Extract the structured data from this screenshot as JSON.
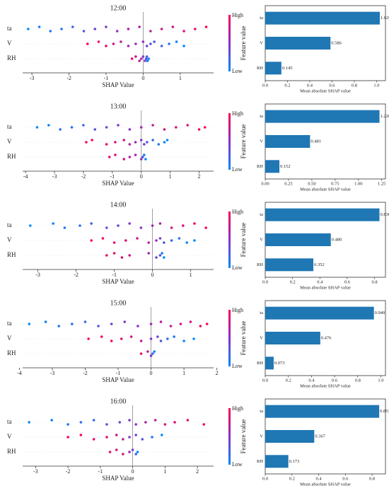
{
  "chart_data": [
    {
      "type": "beeswarm",
      "title": "12:00",
      "xlabel": "SHAP Value",
      "colorbar_label": "Feature value",
      "colorbar_high": "High",
      "colorbar_low": "Low",
      "xlim": [
        -3.25,
        1.9
      ],
      "xticks": [
        -3,
        -2,
        -1,
        0,
        1
      ],
      "series": [
        {
          "name": "ta",
          "values": [
            -3.1,
            -2.8,
            -2.5,
            -2.2,
            -1.9,
            -1.6,
            -1.3,
            -1.0,
            -0.7,
            -0.4,
            -0.1,
            0.2,
            0.5,
            0.8,
            1.1,
            1.4,
            1.7
          ],
          "feature_levels": [
            0,
            0.05,
            0.1,
            0.15,
            0.2,
            0.3,
            0.4,
            0.45,
            0.5,
            0.6,
            0.65,
            0.7,
            0.75,
            0.8,
            0.85,
            0.9,
            1
          ]
        },
        {
          "name": "V",
          "values": [
            -1.5,
            -1.2,
            -1.0,
            -0.8,
            -0.6,
            -0.4,
            -0.2,
            0,
            0.1,
            0.2,
            0.3,
            0.5,
            0.7,
            0.9,
            1.1
          ],
          "feature_levels": [
            1,
            0.95,
            0.9,
            0.8,
            0.7,
            0.6,
            0.55,
            0.5,
            0.4,
            0.3,
            0.25,
            0.2,
            0.1,
            0.05,
            0
          ]
        },
        {
          "name": "RH",
          "values": [
            -0.3,
            -0.2,
            -0.1,
            -0.05,
            0,
            0.05,
            0.08,
            0.1,
            0.12,
            0.15
          ],
          "feature_levels": [
            0.9,
            0.8,
            0.75,
            0.6,
            0.5,
            0.4,
            0.3,
            0.2,
            0.1,
            0
          ]
        }
      ]
    },
    {
      "type": "barh",
      "categories": [
        "ta",
        "V",
        "RH"
      ],
      "values": [
        1.029,
        0.586,
        0.145
      ],
      "value_labels": [
        "1.029",
        "0.586",
        "0.145"
      ],
      "color": "#1f77b4",
      "xlim": [
        0,
        1.08
      ],
      "xticks": [
        {
          "value": 0,
          "label": "0.0"
        },
        0.2,
        0.4,
        0.6,
        0.8,
        {
          "value": 1,
          "label": "1.0"
        }
      ],
      "xlabel": "Mean absolute SHAP value"
    },
    {
      "type": "beeswarm",
      "title": "13:00",
      "xlabel": "SHAP Value",
      "colorbar_label": "Feature value",
      "colorbar_high": "High",
      "colorbar_low": "Low",
      "xlim": [
        -4.1,
        2.5
      ],
      "xticks": [
        -4,
        -3,
        -2,
        -1,
        0,
        1,
        2
      ],
      "series": [
        {
          "name": "ta",
          "values": [
            -3.6,
            -3.2,
            -2.8,
            -2.4,
            -2.0,
            -1.6,
            -1.2,
            -0.8,
            -0.4,
            0,
            0.4,
            0.8,
            1.2,
            1.6,
            2.0,
            2.2
          ],
          "feature_levels": [
            0,
            0.05,
            0.1,
            0.15,
            0.2,
            0.3,
            0.4,
            0.45,
            0.5,
            0.6,
            0.7,
            0.75,
            0.8,
            0.85,
            0.9,
            1
          ]
        },
        {
          "name": "V",
          "values": [
            -1.9,
            -1.7,
            -1.2,
            -0.9,
            -0.6,
            -0.4,
            -0.2,
            0,
            0.1,
            0.2,
            0.4,
            0.6,
            0.8,
            0.9
          ],
          "feature_levels": [
            1,
            0.95,
            0.9,
            0.85,
            0.8,
            0.7,
            0.6,
            0.5,
            0.4,
            0.3,
            0.2,
            0.1,
            0.05,
            0
          ]
        },
        {
          "name": "RH",
          "values": [
            -1.1,
            -0.9,
            -0.6,
            -0.4,
            -0.2,
            0,
            0.05,
            0.1,
            0.15
          ],
          "feature_levels": [
            0.9,
            0.85,
            0.8,
            0.7,
            0.6,
            0.5,
            0.3,
            0.1,
            0
          ]
        }
      ]
    },
    {
      "type": "barh",
      "categories": [
        "ta",
        "V",
        "RH"
      ],
      "values": [
        1.226,
        0.481,
        0.152
      ],
      "value_labels": [
        "1.226",
        "0.481",
        "0.152"
      ],
      "color": "#1f77b4",
      "xlim": [
        0,
        1.29
      ],
      "xticks": [
        {
          "value": 0,
          "label": "0.00"
        },
        0.25,
        {
          "value": 0.5,
          "label": "0.50"
        },
        0.75,
        {
          "value": 1,
          "label": "1.00"
        },
        1.25
      ],
      "xlabel": "Mean absolute SHAP value"
    },
    {
      "type": "beeswarm",
      "title": "14:00",
      "xlabel": "SHAP Value",
      "colorbar_label": "Feature value",
      "colorbar_high": "High",
      "colorbar_low": "Low",
      "xlim": [
        -3.4,
        1.6
      ],
      "xticks": [
        -3,
        -2,
        -1,
        0,
        1
      ],
      "series": [
        {
          "name": "ta",
          "values": [
            -3.2,
            -2.6,
            -2.3,
            -1.9,
            -1.6,
            -1.2,
            -0.9,
            -0.6,
            -0.3,
            0,
            0.2,
            0.5,
            0.8,
            1.1,
            1.4
          ],
          "feature_levels": [
            0,
            0.05,
            0.1,
            0.15,
            0.2,
            0.3,
            0.4,
            0.45,
            0.5,
            0.6,
            0.7,
            0.8,
            0.85,
            0.9,
            1
          ]
        },
        {
          "name": "V",
          "values": [
            -1.6,
            -1.3,
            -1.0,
            -0.7,
            -0.4,
            -0.1,
            0.1,
            0.2,
            0.3,
            0.5,
            0.7,
            0.9,
            1.1
          ],
          "feature_levels": [
            1,
            0.95,
            0.9,
            0.85,
            0.8,
            0.7,
            0.5,
            0.4,
            0.3,
            0.2,
            0.1,
            0.05,
            0
          ]
        },
        {
          "name": "RH",
          "values": [
            -1.2,
            -1.0,
            -0.8,
            -0.6,
            -0.1,
            0.1,
            0.2,
            0.25,
            0.3
          ],
          "feature_levels": [
            0.9,
            0.9,
            0.85,
            0.8,
            0.6,
            0.4,
            0.3,
            0.1,
            0
          ]
        }
      ]
    },
    {
      "type": "barh",
      "categories": [
        "ta",
        "V",
        "RH"
      ],
      "values": [
        0.836,
        0.48,
        0.352
      ],
      "value_labels": [
        "0.836",
        "0.480",
        "0.352"
      ],
      "color": "#1f77b4",
      "xlim": [
        0,
        0.88
      ],
      "xticks": [
        {
          "value": 0,
          "label": "0.0"
        },
        0.2,
        0.4,
        0.6,
        0.8
      ],
      "xlabel": "Mean absolute SHAP value"
    },
    {
      "type": "beeswarm",
      "title": "15:00",
      "xlabel": "SHAP Value",
      "colorbar_label": "Feature value",
      "colorbar_high": "High",
      "colorbar_low": "Low",
      "xlim": [
        -3.9,
        1.9
      ],
      "xticks": [
        -4,
        -3,
        -2,
        -1,
        0,
        1,
        2
      ],
      "series": [
        {
          "name": "ta",
          "values": [
            -3.7,
            -3.2,
            -2.8,
            -2.4,
            -2.0,
            -1.6,
            -1.2,
            -0.8,
            -0.4,
            0,
            0.3,
            0.6,
            0.9,
            1.2,
            1.5,
            1.7
          ],
          "feature_levels": [
            0,
            0.05,
            0.1,
            0.15,
            0.2,
            0.3,
            0.4,
            0.45,
            0.5,
            0.6,
            0.7,
            0.75,
            0.8,
            0.85,
            0.9,
            1
          ]
        },
        {
          "name": "V",
          "values": [
            -1.9,
            -1.5,
            -1.2,
            -0.9,
            -0.6,
            -0.3,
            0,
            0.2,
            0.3,
            0.5,
            0.7,
            1.0,
            1.3
          ],
          "feature_levels": [
            1,
            0.95,
            0.9,
            0.85,
            0.8,
            0.7,
            0.5,
            0.4,
            0.3,
            0.2,
            0.1,
            0.05,
            0
          ]
        },
        {
          "name": "RH",
          "values": [
            -0.3,
            -0.1,
            0,
            0.05,
            0.1
          ],
          "feature_levels": [
            0.9,
            0.7,
            0.5,
            0.2,
            0
          ]
        }
      ]
    },
    {
      "type": "barh",
      "categories": [
        "ta",
        "V",
        "RH"
      ],
      "values": [
        0.94,
        0.476,
        0.073
      ],
      "value_labels": [
        "0.940",
        "0.476",
        "0.073"
      ],
      "color": "#1f77b4",
      "xlim": [
        0,
        1.04
      ],
      "xticks": [
        {
          "value": 0,
          "label": "0.0"
        },
        0.2,
        0.4,
        0.6,
        0.8,
        {
          "value": 1,
          "label": "1.0"
        }
      ],
      "xlabel": "Mean absolute SHAP value"
    },
    {
      "type": "beeswarm",
      "title": "16:00",
      "xlabel": "SHAP Value",
      "colorbar_label": "Feature value",
      "colorbar_high": "High",
      "colorbar_low": "Low",
      "xlim": [
        -3.4,
        2.5
      ],
      "xticks": [
        -3,
        -2,
        -1,
        0,
        1,
        2
      ],
      "series": [
        {
          "name": "ta",
          "values": [
            -3.2,
            -2.5,
            -2.0,
            -1.6,
            -1.2,
            -0.8,
            -0.4,
            -0.1,
            0.1,
            0.4,
            0.7,
            1.0,
            1.3,
            1.7,
            2.2
          ],
          "feature_levels": [
            0,
            0.05,
            0.1,
            0.15,
            0.2,
            0.3,
            0.4,
            0.45,
            0.5,
            0.6,
            0.7,
            0.8,
            0.85,
            0.9,
            1
          ]
        },
        {
          "name": "V",
          "values": [
            -2.0,
            -1.6,
            -1.2,
            -0.8,
            -0.5,
            -0.3,
            -0.1,
            0.1,
            0.3,
            0.6,
            0.9
          ],
          "feature_levels": [
            1,
            0.95,
            0.9,
            0.85,
            0.8,
            0.7,
            0.5,
            0.4,
            0.3,
            0.1,
            0
          ]
        },
        {
          "name": "RH",
          "values": [
            -0.7,
            -0.5,
            -0.3,
            -0.1,
            0,
            0.1,
            0.15
          ],
          "feature_levels": [
            0.9,
            0.85,
            0.8,
            0.6,
            0.4,
            0.2,
            0
          ]
        }
      ]
    },
    {
      "type": "barh",
      "categories": [
        "ta",
        "V",
        "RH"
      ],
      "values": [
        0.853,
        0.367,
        0.173
      ],
      "value_labels": [
        "0.853",
        "0.367",
        "0.173"
      ],
      "color": "#1f77b4",
      "xlim": [
        0,
        0.9
      ],
      "xticks": [
        {
          "value": 0,
          "label": "0.0"
        },
        0.2,
        0.4,
        0.6,
        0.8
      ],
      "xlabel": "Mean absolute SHAP value"
    }
  ]
}
